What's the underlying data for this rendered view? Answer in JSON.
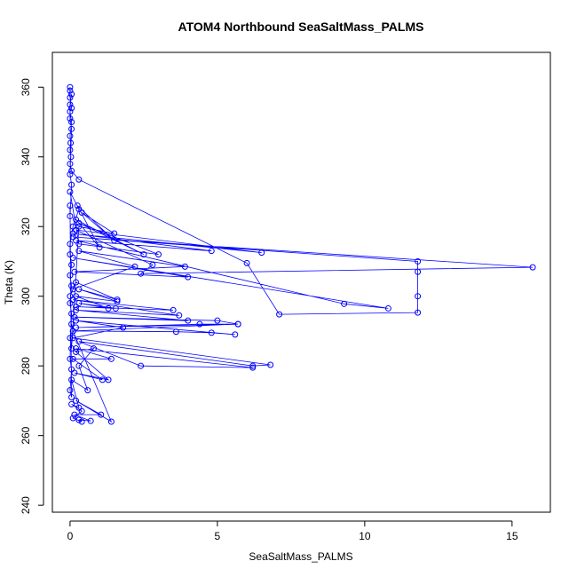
{
  "chart_data": {
    "type": "line",
    "title": "ATOM4 Northbound SeaSaltMass_PALMS",
    "xlabel": "SeaSaltMass_PALMS",
    "ylabel": "Theta (K)",
    "xlim": [
      -0.6,
      16.3
    ],
    "ylim": [
      238,
      370
    ],
    "xticks": [
      0,
      5,
      10,
      15
    ],
    "yticks": [
      240,
      260,
      280,
      300,
      320,
      340,
      360
    ],
    "color": "#0000ff",
    "marker": "open-circle",
    "grid": false,
    "series": [
      {
        "values": [
          [
            0.0,
            360.0
          ],
          [
            0.0,
            359.0
          ],
          [
            0.0,
            357.0
          ],
          [
            0.05,
            354.0
          ],
          [
            0.0,
            353.0
          ],
          [
            0.05,
            350.0
          ],
          [
            0.0,
            346.0
          ],
          [
            0.02,
            344.0
          ],
          [
            0.0,
            342.0
          ],
          [
            0.03,
            340.0
          ],
          [
            0.0,
            338.0
          ],
          [
            0.05,
            336.0
          ],
          [
            0.3,
            333.5
          ],
          [
            6.0,
            309.5
          ],
          [
            7.1,
            294.8
          ],
          [
            11.8,
            295.3
          ],
          [
            11.8,
            300.0
          ],
          [
            11.8,
            307.0
          ],
          [
            11.8,
            310.0
          ],
          [
            0.1,
            317.0
          ],
          [
            15.7,
            308.3
          ],
          [
            2.4,
            306.5
          ],
          [
            2.8,
            309.0
          ],
          [
            0.2,
            319.0
          ],
          [
            6.5,
            312.5
          ],
          [
            0.1,
            318.0
          ],
          [
            4.8,
            313.0
          ],
          [
            0.2,
            316.0
          ],
          [
            9.3,
            297.8
          ],
          [
            10.8,
            296.5
          ],
          [
            0.1,
            311.0
          ],
          [
            4.0,
            305.5
          ],
          [
            0.15,
            307.0
          ],
          [
            3.9,
            308.5
          ],
          [
            0.3,
            313.0
          ],
          [
            2.2,
            308.5
          ],
          [
            0.1,
            302.0
          ],
          [
            0.0,
            300.0
          ],
          [
            0.2,
            304.0
          ],
          [
            1.6,
            299.0
          ],
          [
            0.3,
            302.0
          ],
          [
            1.6,
            298.5
          ],
          [
            0.2,
            300.0
          ],
          [
            1.3,
            296.5
          ],
          [
            0.3,
            298.0
          ],
          [
            1.55,
            296.5
          ],
          [
            0.2,
            297.0
          ],
          [
            3.5,
            296.0
          ],
          [
            0.1,
            299.0
          ],
          [
            3.7,
            294.5
          ],
          [
            0.2,
            296.0
          ],
          [
            4.0,
            293.0
          ],
          [
            0.15,
            294.0
          ],
          [
            5.0,
            293.0
          ],
          [
            5.7,
            292.0
          ],
          [
            0.2,
            291.0
          ],
          [
            4.4,
            292.0
          ],
          [
            5.7,
            292.0
          ],
          [
            0.1,
            290.0
          ],
          [
            3.6,
            289.8
          ],
          [
            4.8,
            289.5
          ],
          [
            5.6,
            289.0
          ],
          [
            0.2,
            293.0
          ],
          [
            1.8,
            291.0
          ],
          [
            0.1,
            288.0
          ],
          [
            6.8,
            280.3
          ],
          [
            6.2,
            280.0
          ],
          [
            0.3,
            287.0
          ],
          [
            2.4,
            280.0
          ],
          [
            6.2,
            279.5
          ],
          [
            0.2,
            285.0
          ],
          [
            1.4,
            282.0
          ],
          [
            0.1,
            282.0
          ],
          [
            1.1,
            276.0
          ],
          [
            0.15,
            278.0
          ],
          [
            1.3,
            276.0
          ],
          [
            0.2,
            284.0
          ],
          [
            0.8,
            285.0
          ],
          [
            0.3,
            280.0
          ],
          [
            0.6,
            273.0
          ],
          [
            0.05,
            276.0
          ],
          [
            0.3,
            268.0
          ],
          [
            0.05,
            269.0
          ],
          [
            0.4,
            267.0
          ],
          [
            0.1,
            265.0
          ],
          [
            0.4,
            264.0
          ],
          [
            0.3,
            264.5
          ],
          [
            0.7,
            264.2
          ],
          [
            0.15,
            266.0
          ],
          [
            1.05,
            266.0
          ],
          [
            0.2,
            270.0
          ],
          [
            1.4,
            264.0
          ],
          [
            0.1,
            290.0
          ],
          [
            0.05,
            292.0
          ],
          [
            0.0,
            288.0
          ],
          [
            0.05,
            285.0
          ],
          [
            0.3,
            320.0
          ],
          [
            1.5,
            318.0
          ],
          [
            0.4,
            324.0
          ],
          [
            1.5,
            316.0
          ],
          [
            0.25,
            326.0
          ],
          [
            1.0,
            314.0
          ],
          [
            0.2,
            322.0
          ],
          [
            2.5,
            312.0
          ],
          [
            0.3,
            321.0
          ],
          [
            3.0,
            312.0
          ],
          [
            0.3,
            315.0
          ],
          [
            0.0,
            330.0
          ],
          [
            0.3,
            325.0
          ],
          [
            0.1,
            320.0
          ],
          [
            0.0,
            315.0
          ],
          [
            0.0,
            312.0
          ],
          [
            0.05,
            309.0
          ],
          [
            0.0,
            306.0
          ],
          [
            0.05,
            303.0
          ],
          [
            0.0,
            298.0
          ],
          [
            0.05,
            295.0
          ],
          [
            0.0,
            282.0
          ],
          [
            0.05,
            279.0
          ],
          [
            0.0,
            273.0
          ],
          [
            0.05,
            271.0
          ],
          [
            0.0,
            326.0
          ],
          [
            0.0,
            323.0
          ],
          [
            0.05,
            332.0
          ],
          [
            0.0,
            335.0
          ],
          [
            0.05,
            348.0
          ],
          [
            0.0,
            351.0
          ],
          [
            0.0,
            355.0
          ],
          [
            0.05,
            358.0
          ]
        ]
      }
    ]
  }
}
